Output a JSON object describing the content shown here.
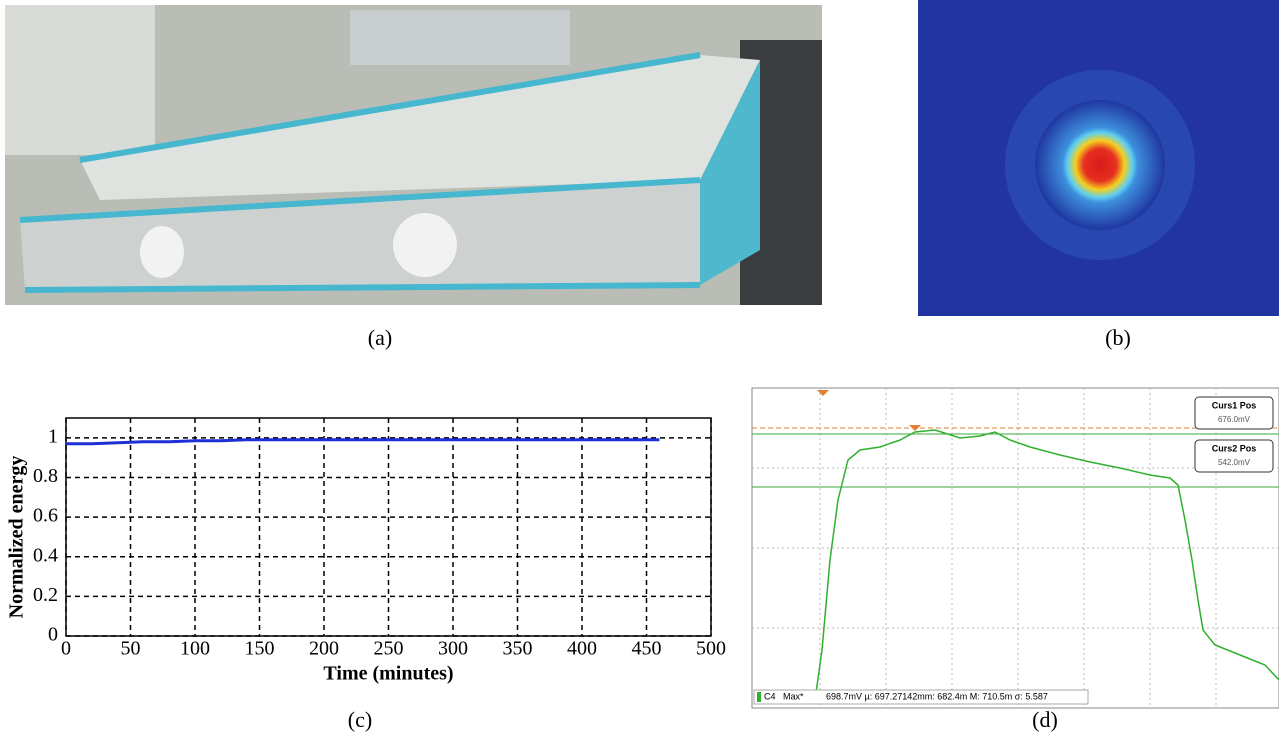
{
  "panels": {
    "a": "(a)",
    "b": "(b)",
    "c": "(c)",
    "d": "(d)"
  },
  "scope": {
    "curs1_title": "Curs1 Pos",
    "curs1_value": "676.0mV",
    "curs2_title": "Curs2 Pos",
    "curs2_value": "542.0mV",
    "channel": "C4",
    "measure": "Max*",
    "stats": "698.7mV µ: 697.27142mm: 682.4m M: 710.5m σ: 5.587"
  },
  "chart_data": {
    "type": "line",
    "xlabel": "Time (minutes)",
    "ylabel": "Normalized energy",
    "xlim": [
      0,
      500
    ],
    "ylim": [
      0,
      1.1
    ],
    "xticks": [
      0,
      50,
      100,
      150,
      200,
      250,
      300,
      350,
      400,
      450,
      500
    ],
    "yticks": [
      0,
      0.2,
      0.4,
      0.6,
      0.8,
      1
    ],
    "grid": true,
    "series": [
      {
        "color": "#1f2fd6",
        "x": [
          0,
          20,
          40,
          60,
          80,
          100,
          120,
          140,
          160,
          180,
          200,
          220,
          240,
          260,
          280,
          300,
          320,
          340,
          360,
          380,
          400,
          420,
          440,
          460
        ],
        "values": [
          0.97,
          0.97,
          0.975,
          0.98,
          0.98,
          0.985,
          0.985,
          0.99,
          0.99,
          0.99,
          0.99,
          0.99,
          0.99,
          0.99,
          0.99,
          0.99,
          0.99,
          0.99,
          0.99,
          0.99,
          0.99,
          0.99,
          0.99,
          0.99
        ]
      }
    ]
  }
}
